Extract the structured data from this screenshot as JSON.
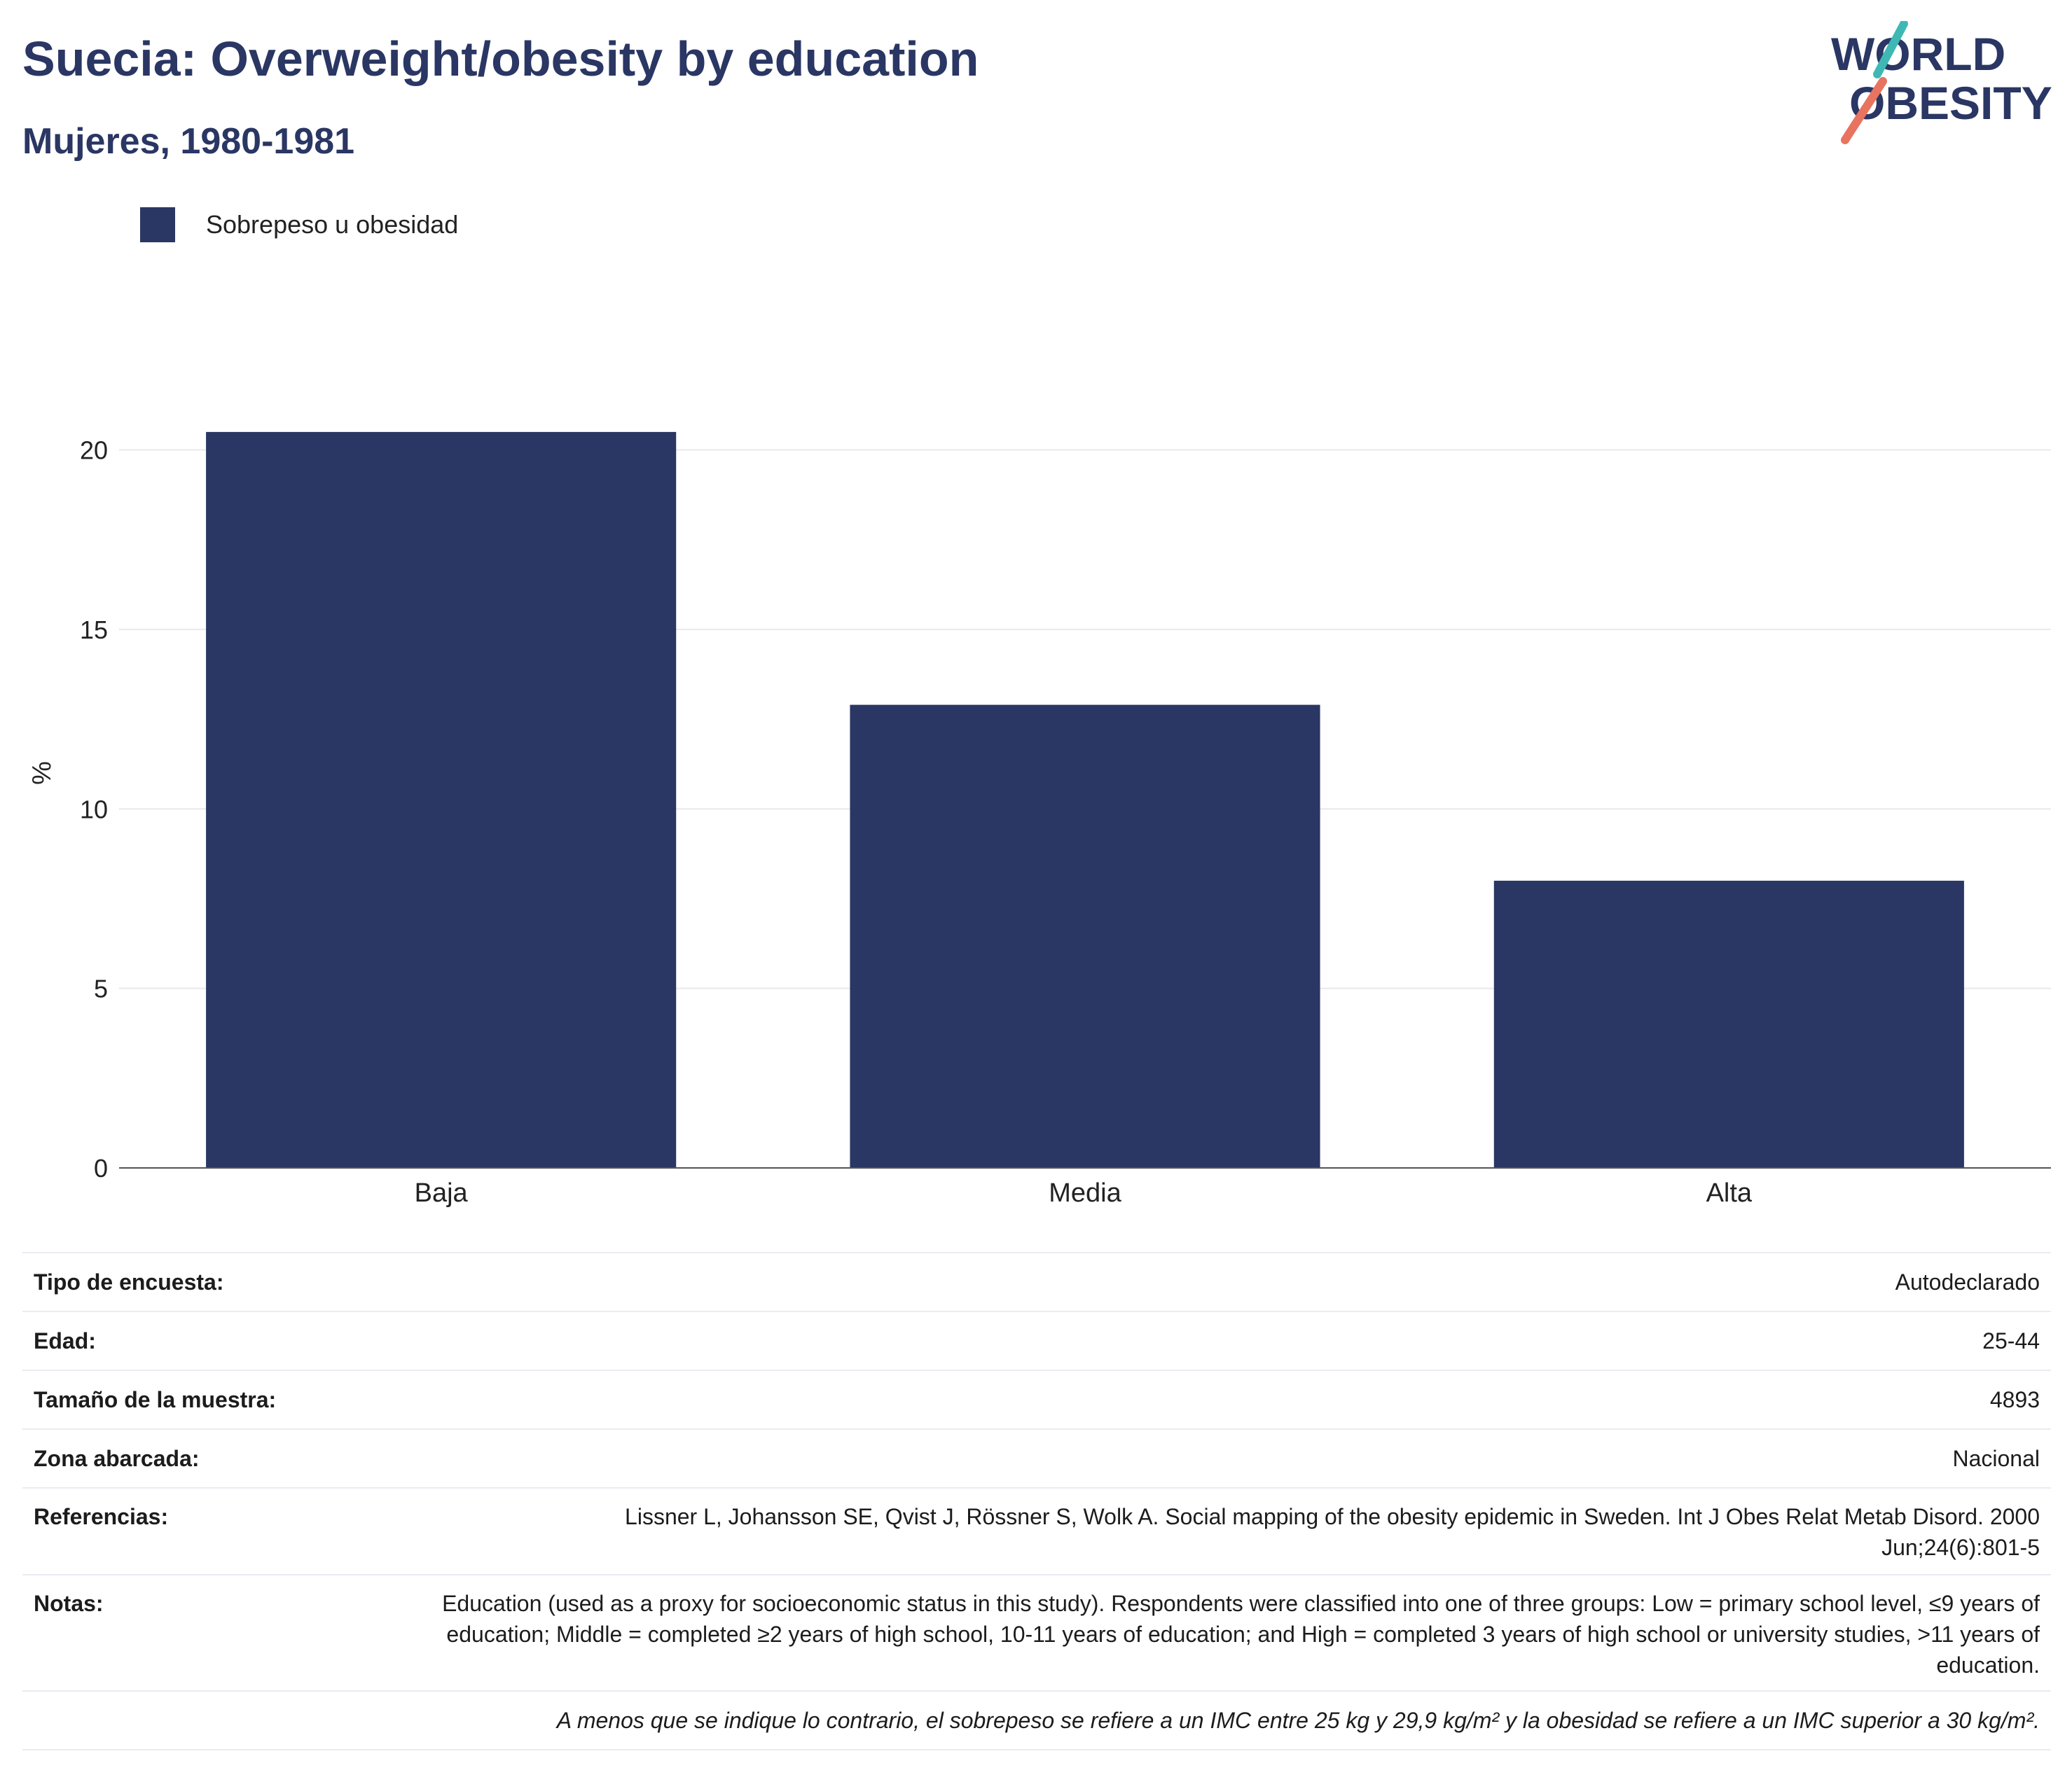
{
  "header": {
    "title": "Suecia: Overweight/obesity by education",
    "subtitle": "Mujeres, 1980-1981"
  },
  "logo": {
    "line1": "WORLD",
    "line2": "OBESITY"
  },
  "legend": {
    "label": "Sobrepeso u obesidad"
  },
  "colors": {
    "bar": "#2a3663",
    "grid": "#e8e8ee",
    "axis": "#555555",
    "text": "#222222"
  },
  "chart_data": {
    "type": "bar",
    "categories": [
      "Baja",
      "Media",
      "Alta"
    ],
    "series": [
      {
        "name": "Sobrepeso u obesidad",
        "values": [
          20.5,
          12.9,
          8.0
        ]
      }
    ],
    "ylabel": "%",
    "xlabel": "",
    "ylim": [
      0,
      22
    ],
    "yticks": [
      0,
      5,
      10,
      15,
      20
    ],
    "grid": true,
    "legend_position": "top-left"
  },
  "info": {
    "survey_type_label": "Tipo de encuesta:",
    "survey_type_value": "Autodeclarado",
    "age_label": "Edad:",
    "age_value": "25-44",
    "sample_label": "Tamaño de la muestra:",
    "sample_value": "4893",
    "area_label": "Zona abarcada:",
    "area_value": "Nacional",
    "references_label": "Referencias:",
    "references_value": "Lissner L, Johansson SE, Qvist J, Rössner S, Wolk A. Social mapping of the obesity epidemic in Sweden. Int J Obes Relat Metab Disord. 2000 Jun;24(6):801-5",
    "notes_label": "Notas:",
    "notes_value": "Education (used as a proxy for socioeconomic status in this study). Respondents were classified into one of three groups: Low = primary school level, ≤9 years of education; Middle = completed ≥2 years of high school, 10-11 years of education; and High = completed 3 years of high school or university studies, >11 years of education.",
    "footnote": "A menos que se indique lo contrario, el sobrepeso se refiere a un IMC entre 25 kg y 29,9 kg/m² y la obesidad se refiere a un IMC superior a 30 kg/m²."
  }
}
